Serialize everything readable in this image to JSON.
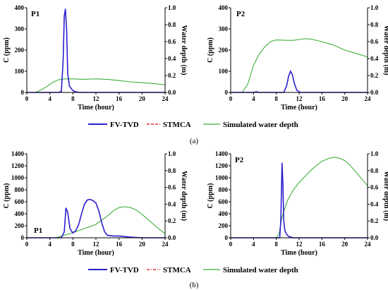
{
  "colors": {
    "fvtvd": "#2b1fd0",
    "stmca": "#e83030",
    "depth": "#3fae3a",
    "axis": "#000000"
  },
  "legend_a": {
    "fvtvd": "FV-TVD",
    "stmca": "STMCA",
    "depth": "Simulated water depth"
  },
  "legend_b": {
    "fvtvd": "FV-TVD",
    "stmca": "STMCA",
    "depth": "Simulated water depth"
  },
  "captions": {
    "a": "(a)",
    "b": "(b)"
  },
  "chart_data": [
    {
      "id": "a-p1",
      "type": "line",
      "title": "P1",
      "xlabel": "Time (hour)",
      "ylabel": "C (ppm)",
      "y2label": "Water depth (m)",
      "xlim": [
        0,
        24
      ],
      "xticks": [
        0,
        4,
        8,
        12,
        16,
        20,
        24
      ],
      "ylim": [
        0,
        400
      ],
      "yticks": [
        0,
        100,
        200,
        300,
        400
      ],
      "y2lim": [
        0,
        1.0
      ],
      "y2ticks": [
        "0.0",
        "0.2",
        "0.4",
        "0.6",
        "0.8",
        "1.0"
      ],
      "series": [
        {
          "name": "FV-TVD",
          "axis": "y",
          "x": [
            0,
            5.5,
            6.0,
            6.3,
            6.5,
            6.7,
            6.9,
            7.1,
            7.4,
            7.8,
            8.2,
            9,
            24
          ],
          "y": [
            0,
            0,
            5,
            150,
            360,
            395,
            300,
            90,
            30,
            15,
            5,
            0,
            0
          ]
        },
        {
          "name": "STMCA",
          "axis": "y",
          "x": [
            0,
            5.5,
            6.0,
            6.3,
            6.5,
            6.7,
            6.9,
            7.1,
            7.4,
            7.8,
            8.2,
            9,
            24
          ],
          "y": [
            0,
            0,
            5,
            150,
            360,
            395,
            300,
            90,
            30,
            15,
            5,
            0,
            0
          ]
        },
        {
          "name": "Simulated water depth",
          "axis": "y2",
          "x": [
            0,
            1.5,
            2.5,
            3.5,
            4.5,
            5.5,
            6.5,
            8,
            10,
            12,
            14,
            16,
            18,
            20,
            22,
            24
          ],
          "y": [
            0,
            0,
            0.03,
            0.07,
            0.12,
            0.15,
            0.16,
            0.16,
            0.155,
            0.16,
            0.155,
            0.14,
            0.125,
            0.115,
            0.105,
            0.09
          ]
        }
      ]
    },
    {
      "id": "a-p2",
      "type": "line",
      "title": "P2",
      "xlabel": "Time (hour)",
      "ylabel": "C (ppm)",
      "y2label": "Water depth (m)",
      "xlim": [
        0,
        24
      ],
      "xticks": [
        0,
        4,
        8,
        12,
        16,
        20,
        24
      ],
      "ylim": [
        0,
        400
      ],
      "yticks": [
        0,
        100,
        200,
        300,
        400
      ],
      "y2lim": [
        0,
        1.0
      ],
      "y2ticks": [
        "0.0",
        "0.2",
        "0.4",
        "0.6",
        "0.8",
        "1.0"
      ],
      "series": [
        {
          "name": "FV-TVD",
          "axis": "y",
          "x": [
            0,
            4,
            4.5,
            5,
            9.3,
            9.8,
            10.2,
            10.5,
            10.8,
            11.2,
            11.6,
            12.2,
            24
          ],
          "y": [
            0,
            0,
            3,
            0,
            0,
            30,
            80,
            100,
            85,
            40,
            10,
            0,
            0
          ]
        },
        {
          "name": "STMCA",
          "axis": "y",
          "x": [
            0,
            4,
            4.5,
            5,
            9.3,
            9.8,
            10.2,
            10.5,
            10.8,
            11.2,
            11.6,
            12.2,
            24
          ],
          "y": [
            0,
            0,
            3,
            0,
            0,
            30,
            80,
            100,
            85,
            40,
            10,
            0,
            0
          ]
        },
        {
          "name": "Simulated water depth",
          "axis": "y2",
          "x": [
            0,
            2,
            3,
            4,
            5,
            6,
            7,
            8,
            10,
            11,
            12,
            13,
            14,
            16,
            18,
            20,
            22,
            24
          ],
          "y": [
            0,
            0,
            0.1,
            0.32,
            0.45,
            0.54,
            0.6,
            0.62,
            0.615,
            0.615,
            0.625,
            0.635,
            0.63,
            0.6,
            0.56,
            0.5,
            0.46,
            0.42
          ]
        }
      ]
    },
    {
      "id": "b-p1",
      "type": "line",
      "title": "P1",
      "xlabel": "Time (hour)",
      "ylabel": "C (ppm)",
      "y2label": "Water depth (m)",
      "xlim": [
        0,
        24
      ],
      "xticks": [
        0,
        4,
        8,
        12,
        16,
        20,
        24
      ],
      "ylim": [
        0,
        1400
      ],
      "yticks": [
        0,
        200,
        400,
        600,
        800,
        1000,
        1200,
        1400
      ],
      "y2lim": [
        0,
        1.0
      ],
      "y2ticks": [
        "0.0",
        "0.2",
        "0.4",
        "0.6",
        "0.8",
        "1.0"
      ],
      "series": [
        {
          "name": "FV-TVD",
          "axis": "y",
          "x": [
            0,
            6,
            6.5,
            6.8,
            7.1,
            7.5,
            8,
            8.5,
            9,
            9.5,
            10,
            10.5,
            11,
            11.5,
            12,
            12.5,
            13,
            13.5,
            14,
            15,
            16,
            17,
            18,
            20,
            24
          ],
          "y": [
            0,
            0,
            100,
            500,
            420,
            150,
            80,
            120,
            220,
            400,
            560,
            630,
            640,
            620,
            580,
            450,
            250,
            100,
            40,
            30,
            30,
            20,
            10,
            0,
            0
          ]
        },
        {
          "name": "STMCA",
          "axis": "y",
          "x": [
            0,
            6,
            6.5,
            6.8,
            7.1,
            7.5,
            8,
            8.5,
            9,
            9.5,
            10,
            10.5,
            11,
            11.5,
            12,
            12.5,
            13,
            13.5,
            14,
            15,
            16,
            17,
            18,
            20,
            24
          ],
          "y": [
            0,
            0,
            100,
            500,
            420,
            150,
            80,
            120,
            220,
            400,
            560,
            630,
            640,
            620,
            580,
            450,
            250,
            100,
            40,
            30,
            30,
            20,
            10,
            0,
            0
          ]
        },
        {
          "name": "Simulated water depth",
          "axis": "y2",
          "x": [
            0,
            5,
            6,
            8,
            10,
            12,
            14,
            15,
            16,
            17,
            18,
            19,
            20,
            21,
            22,
            23,
            24
          ],
          "y": [
            0,
            0,
            0.02,
            0.06,
            0.11,
            0.16,
            0.26,
            0.32,
            0.36,
            0.37,
            0.36,
            0.33,
            0.28,
            0.22,
            0.16,
            0.1,
            0.05
          ]
        }
      ]
    },
    {
      "id": "b-p2",
      "type": "line",
      "title": "P2",
      "xlabel": "Time (hour)",
      "ylabel": "C (ppm)",
      "y2label": "Water depth (m)",
      "xlim": [
        0,
        24
      ],
      "xticks": [
        0,
        4,
        8,
        12,
        16,
        20,
        24
      ],
      "ylim": [
        0,
        1400
      ],
      "yticks": [
        0,
        200,
        400,
        600,
        800,
        1000,
        1200,
        1400
      ],
      "y2lim": [
        0,
        1.0
      ],
      "y2ticks": [
        "0.0",
        "0.2",
        "0.4",
        "0.6",
        "0.8",
        "1.0"
      ],
      "series": [
        {
          "name": "FV-TVD",
          "axis": "y",
          "x": [
            0,
            8.6,
            8.8,
            9.0,
            9.15,
            9.3,
            9.5,
            9.8,
            10.2,
            11,
            24
          ],
          "y": [
            0,
            0,
            300,
            1250,
            900,
            300,
            120,
            60,
            20,
            0,
            0
          ]
        },
        {
          "name": "STMCA",
          "axis": "y",
          "x": [
            0,
            8.6,
            8.8,
            9.0,
            9.15,
            9.3,
            9.5,
            9.8,
            10.2,
            11,
            24
          ],
          "y": [
            0,
            0,
            300,
            1250,
            900,
            300,
            120,
            60,
            20,
            0,
            0
          ]
        },
        {
          "name": "Simulated water depth",
          "axis": "y2",
          "x": [
            0,
            8,
            8.5,
            9,
            10,
            11,
            12,
            13,
            14,
            15,
            16,
            17,
            18,
            19,
            20,
            21,
            22,
            23,
            24
          ],
          "y": [
            0,
            0,
            0.05,
            0.25,
            0.45,
            0.57,
            0.66,
            0.73,
            0.8,
            0.86,
            0.91,
            0.94,
            0.96,
            0.95,
            0.92,
            0.86,
            0.78,
            0.7,
            0.62
          ]
        }
      ]
    }
  ]
}
